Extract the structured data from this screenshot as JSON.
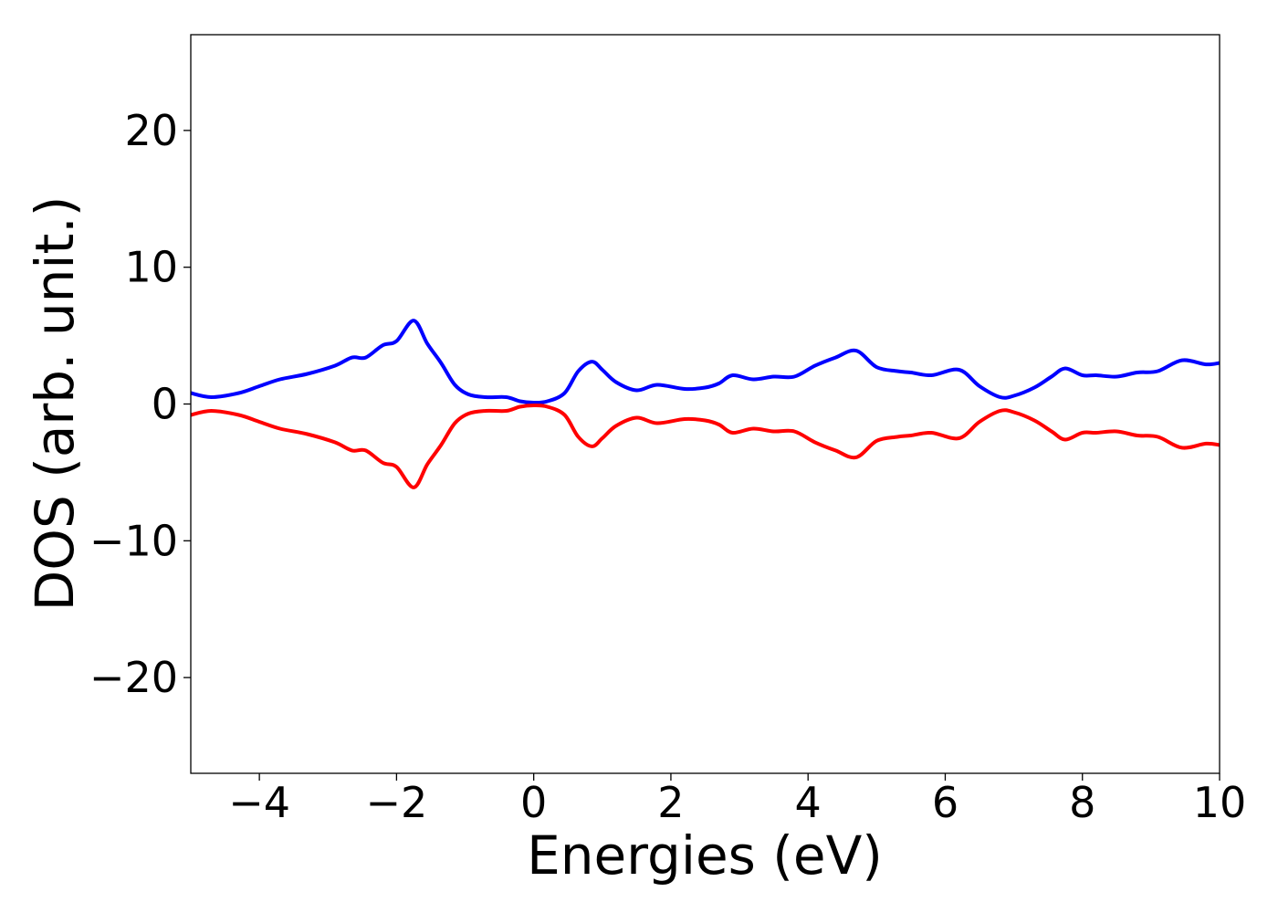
{
  "chart_data": {
    "type": "line",
    "title": "",
    "xlabel": "Energies (eV)",
    "ylabel": "DOS (arb. unit.)",
    "xlim": [
      -5,
      10
    ],
    "ylim": [
      -27,
      27
    ],
    "xticks": [
      -4,
      -2,
      0,
      2,
      4,
      6,
      8,
      10
    ],
    "xtick_labels": [
      "−4",
      "−2",
      "0",
      "2",
      "4",
      "6",
      "8",
      "10"
    ],
    "yticks": [
      20,
      10,
      0,
      -10,
      -20
    ],
    "ytick_labels": [
      "20",
      "10",
      "0",
      "−10",
      "−20"
    ],
    "grid": false,
    "legend": "none",
    "series": [
      {
        "color": "#0000ff",
        "x": [
          -5.0,
          -4.7,
          -4.3,
          -4.0,
          -3.7,
          -3.3,
          -2.9,
          -2.65,
          -2.45,
          -2.2,
          -2.0,
          -1.75,
          -1.55,
          -1.35,
          -1.15,
          -0.95,
          -0.7,
          -0.4,
          -0.2,
          0.0,
          0.2,
          0.45,
          0.65,
          0.85,
          1.0,
          1.2,
          1.5,
          1.8,
          2.2,
          2.5,
          2.7,
          2.9,
          3.2,
          3.5,
          3.8,
          4.1,
          4.4,
          4.7,
          5.0,
          5.3,
          5.5,
          5.8,
          6.2,
          6.5,
          6.8,
          7.0,
          7.3,
          7.55,
          7.75,
          8.0,
          8.2,
          8.5,
          8.8,
          9.1,
          9.45,
          9.8,
          10.0
        ],
        "y": [
          0.8,
          0.5,
          0.8,
          1.3,
          1.8,
          2.2,
          2.8,
          3.4,
          3.4,
          4.3,
          4.6,
          6.1,
          4.4,
          3.0,
          1.4,
          0.7,
          0.5,
          0.5,
          0.2,
          0.1,
          0.2,
          0.8,
          2.4,
          3.1,
          2.5,
          1.6,
          1.0,
          1.4,
          1.1,
          1.2,
          1.5,
          2.1,
          1.8,
          2.0,
          2.0,
          2.8,
          3.4,
          3.9,
          2.7,
          2.4,
          2.3,
          2.1,
          2.5,
          1.3,
          0.5,
          0.6,
          1.2,
          2.0,
          2.6,
          2.1,
          2.1,
          2.0,
          2.3,
          2.4,
          3.2,
          2.9,
          3.0
        ]
      },
      {
        "color": "#ff0000",
        "x": [
          -5.0,
          -4.7,
          -4.3,
          -4.0,
          -3.7,
          -3.3,
          -2.9,
          -2.65,
          -2.45,
          -2.2,
          -2.0,
          -1.75,
          -1.55,
          -1.35,
          -1.15,
          -0.95,
          -0.7,
          -0.4,
          -0.2,
          0.0,
          0.2,
          0.45,
          0.65,
          0.85,
          1.0,
          1.2,
          1.5,
          1.8,
          2.2,
          2.5,
          2.7,
          2.9,
          3.2,
          3.5,
          3.8,
          4.1,
          4.4,
          4.7,
          5.0,
          5.3,
          5.5,
          5.8,
          6.2,
          6.5,
          6.8,
          7.0,
          7.3,
          7.55,
          7.75,
          8.0,
          8.2,
          8.5,
          8.8,
          9.1,
          9.45,
          9.8,
          10.0
        ],
        "y": [
          -0.8,
          -0.5,
          -0.8,
          -1.3,
          -1.8,
          -2.2,
          -2.8,
          -3.4,
          -3.4,
          -4.3,
          -4.6,
          -6.1,
          -4.4,
          -3.0,
          -1.4,
          -0.7,
          -0.5,
          -0.5,
          -0.2,
          -0.1,
          -0.2,
          -0.8,
          -2.4,
          -3.1,
          -2.5,
          -1.6,
          -1.0,
          -1.4,
          -1.1,
          -1.2,
          -1.5,
          -2.1,
          -1.8,
          -2.0,
          -2.0,
          -2.8,
          -3.4,
          -3.9,
          -2.7,
          -2.4,
          -2.3,
          -2.1,
          -2.5,
          -1.3,
          -0.5,
          -0.6,
          -1.2,
          -2.0,
          -2.6,
          -2.1,
          -2.1,
          -2.0,
          -2.3,
          -2.4,
          -3.2,
          -2.9,
          -3.0
        ]
      }
    ]
  }
}
